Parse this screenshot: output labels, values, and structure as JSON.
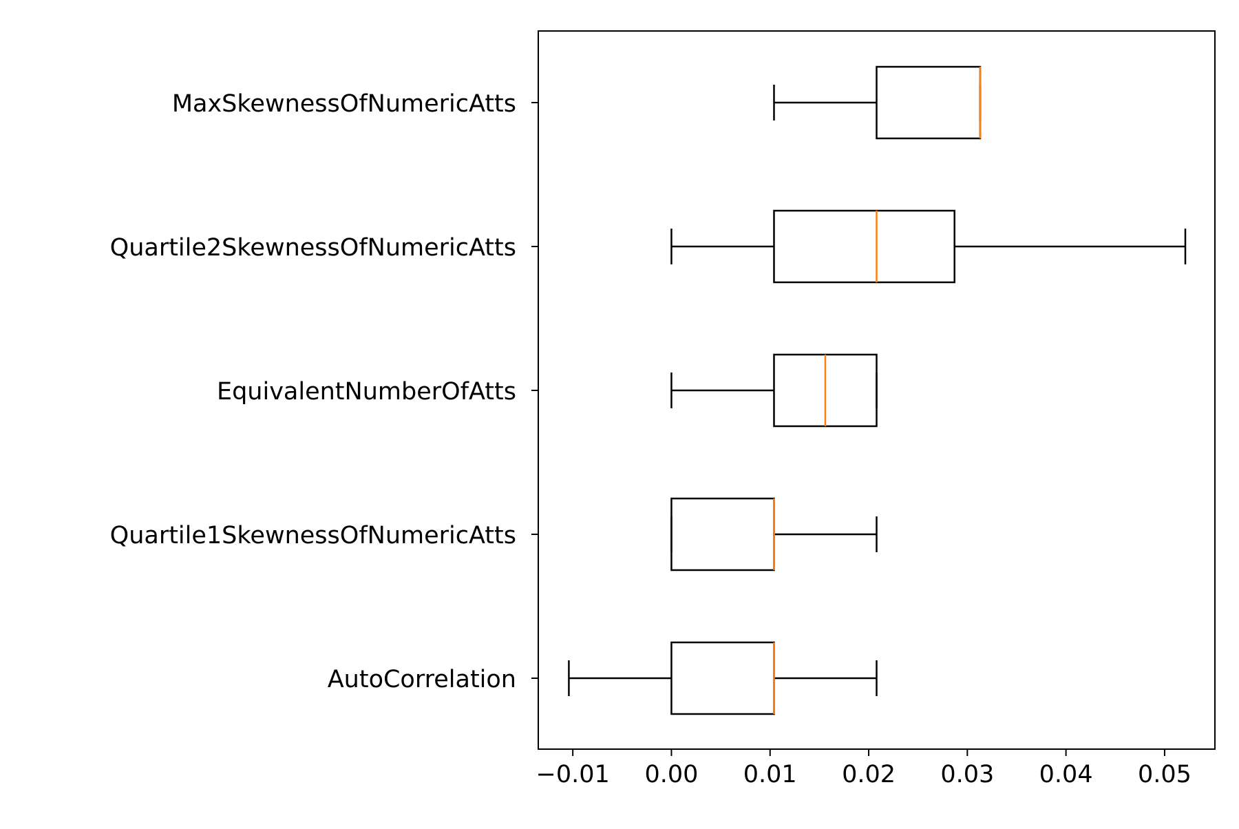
{
  "chart_data": {
    "type": "boxplot",
    "orientation": "horizontal",
    "title": "",
    "xlabel": "",
    "ylabel": "",
    "xlim": [
      -0.0135,
      0.0551
    ],
    "xticks": [
      -0.01,
      0.0,
      0.01,
      0.02,
      0.03,
      0.04,
      0.05
    ],
    "xtick_labels": [
      "−0.01",
      "0.00",
      "0.01",
      "0.02",
      "0.03",
      "0.04",
      "0.05"
    ],
    "grid": false,
    "legend": "none",
    "colors": {
      "box": "#000000",
      "whisker": "#000000",
      "median": "#ff7f0e"
    },
    "categories": [
      "AutoCorrelation",
      "Quartile1SkewnessOfNumericAtts",
      "EquivalentNumberOfAtts",
      "Quartile2SkewnessOfNumericAtts",
      "MaxSkewnessOfNumericAtts"
    ],
    "boxes": [
      {
        "label": "AutoCorrelation",
        "whislo": -0.0104,
        "q1": 0.0,
        "med": 0.0104,
        "q3": 0.0104,
        "whishi": 0.0208
      },
      {
        "label": "Quartile1SkewnessOfNumericAtts",
        "whislo": 0.0,
        "q1": 0.0,
        "med": 0.0104,
        "q3": 0.0104,
        "whishi": 0.0208
      },
      {
        "label": "EquivalentNumberOfAtts",
        "whislo": 0.0,
        "q1": 0.0104,
        "med": 0.0156,
        "q3": 0.0208,
        "whishi": 0.0208
      },
      {
        "label": "Quartile2SkewnessOfNumericAtts",
        "whislo": 0.0,
        "q1": 0.0104,
        "med": 0.0208,
        "q3": 0.0287,
        "whishi": 0.0521
      },
      {
        "label": "MaxSkewnessOfNumericAtts",
        "whislo": 0.0104,
        "q1": 0.0208,
        "med": 0.0313,
        "q3": 0.0313,
        "whishi": 0.0313
      }
    ]
  }
}
